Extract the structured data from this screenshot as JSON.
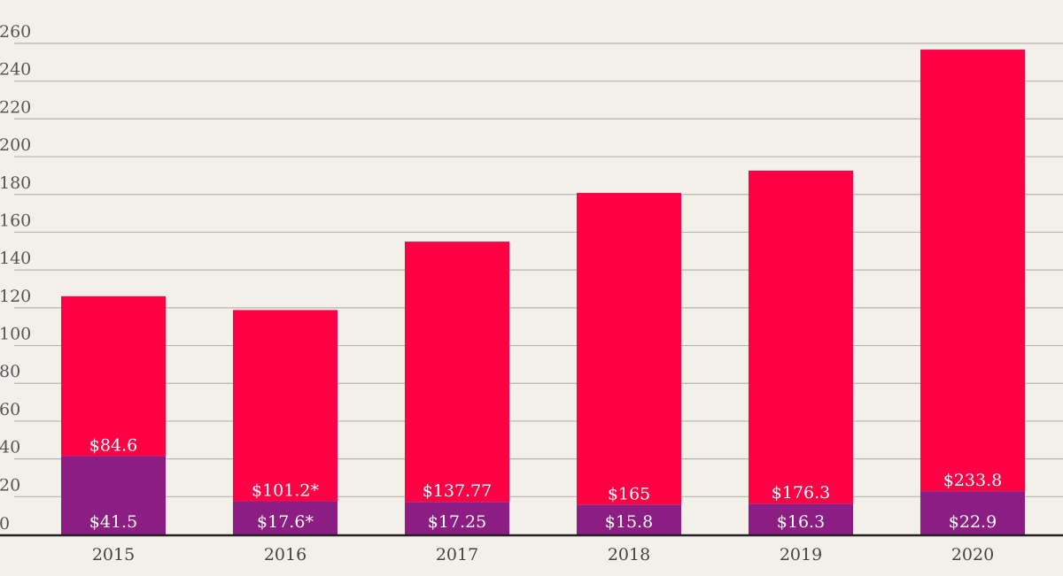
{
  "chart_data": {
    "type": "bar",
    "stacked": true,
    "categories": [
      "2015",
      "2016",
      "2017",
      "2018",
      "2019",
      "2020"
    ],
    "ylim": [
      0,
      260
    ],
    "yticks": [
      0,
      20,
      40,
      60,
      80,
      100,
      120,
      140,
      160,
      180,
      200,
      220,
      240,
      260
    ],
    "grid": true,
    "series": [
      {
        "values": [
          41.5,
          17.6,
          17.25,
          15.8,
          16.3,
          22.9
        ],
        "labels": [
          "$41.5",
          "$17.6*",
          "$17.25",
          "$15.8",
          "$16.3",
          "$22.9"
        ],
        "color": "#8c1d82"
      },
      {
        "values": [
          84.6,
          101.2,
          137.77,
          165,
          176.3,
          233.8
        ],
        "labels": [
          "$84.6",
          "$101.2*",
          "$137.77",
          "$165",
          "$176.3",
          "$233.8"
        ],
        "color": "#ff0044"
      }
    ]
  }
}
